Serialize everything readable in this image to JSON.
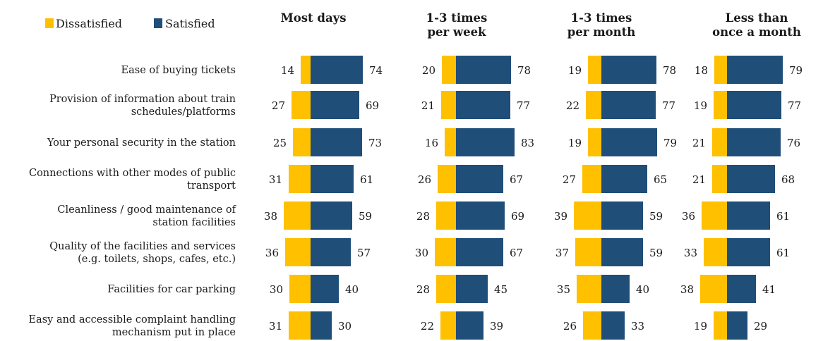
{
  "chart_data": {
    "type": "bar",
    "orientation": "horizontal-diverging",
    "legend": {
      "placement": "top-left",
      "items": [
        {
          "name": "Dissatisfied",
          "color": "#FFC000"
        },
        {
          "name": "Satisfied",
          "color": "#1F4E79"
        }
      ]
    },
    "categories": [
      [
        "Ease of buying tickets"
      ],
      [
        "Provision of information about train",
        "schedules/platforms"
      ],
      [
        "Your personal security in the station"
      ],
      [
        "Connections with other modes of public",
        "transport"
      ],
      [
        "Cleanliness / good maintenance of",
        "station facilities"
      ],
      [
        "Quality of the facilities and services",
        "(e.g. toilets, shops, cafes, etc.)"
      ],
      [
        "Facilities for car parking"
      ],
      [
        "Easy and accessible complaint handling",
        "mechanism put in place"
      ]
    ],
    "panels": [
      {
        "title": [
          "Most days"
        ],
        "series": [
          {
            "name": "Dissatisfied",
            "values": [
              14,
              27,
              25,
              31,
              38,
              36,
              30,
              31
            ]
          },
          {
            "name": "Satisfied",
            "values": [
              74,
              69,
              73,
              61,
              59,
              57,
              40,
              30
            ]
          }
        ]
      },
      {
        "title": [
          "1-3 times",
          "per week"
        ],
        "series": [
          {
            "name": "Dissatisfied",
            "values": [
              20,
              21,
              16,
              26,
              28,
              30,
              28,
              22
            ]
          },
          {
            "name": "Satisfied",
            "values": [
              78,
              77,
              83,
              67,
              69,
              67,
              45,
              39
            ]
          }
        ]
      },
      {
        "title": [
          "1-3 times",
          "per month"
        ],
        "series": [
          {
            "name": "Dissatisfied",
            "values": [
              19,
              22,
              19,
              27,
              39,
              37,
              35,
              26
            ]
          },
          {
            "name": "Satisfied",
            "values": [
              78,
              77,
              79,
              65,
              59,
              59,
              40,
              33
            ]
          }
        ]
      },
      {
        "title": [
          "Less than",
          "once a month"
        ],
        "series": [
          {
            "name": "Dissatisfied",
            "values": [
              18,
              19,
              21,
              21,
              36,
              33,
              38,
              19
            ]
          },
          {
            "name": "Satisfied",
            "values": [
              79,
              77,
              76,
              68,
              61,
              61,
              41,
              29
            ]
          }
        ]
      }
    ]
  }
}
